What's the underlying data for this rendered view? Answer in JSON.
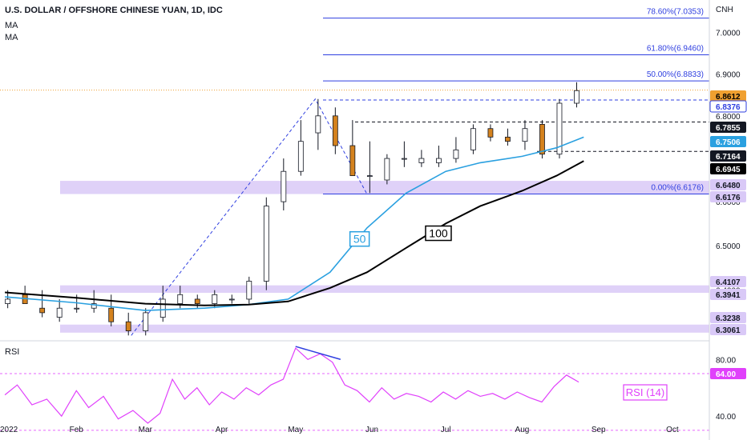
{
  "header": {
    "title": "U.S. DOLLAR / OFFSHORE CHINESE YUAN, 1D, IDC",
    "indicators": [
      "MA",
      "MA"
    ]
  },
  "currency_label": "CNH",
  "rsi_label": "RSI",
  "chart_data": [
    {
      "type": "candlestick",
      "title": "U.S. DOLLAR / OFFSHORE CHINESE YUAN, 1D, IDC",
      "ylabel": "CNH",
      "ylim": [
        6.29,
        7.06
      ],
      "y_scale": "log",
      "x_tick_labels": [
        "2022",
        "Feb",
        "Mar",
        "Apr",
        "May",
        "Jun",
        "Jul",
        "Aug",
        "Sep",
        "Oct"
      ],
      "y_tick_labels": [
        "7.0000",
        "6.9000",
        "6.8000",
        "6.7000",
        "6.6000",
        "6.5000",
        "6.4000"
      ],
      "grid": false,
      "colors": {
        "up": "#ffffff",
        "down": "#d4821e",
        "wick": "#131722",
        "ma50": "#2aa0e0",
        "ma100": "#000000",
        "rsi": "#e040fb",
        "fib": "#2f3fe0",
        "zone": "#d9c9f7"
      },
      "candles": {
        "x": [
          "2022-01-03",
          "2022-01-10",
          "2022-01-17",
          "2022-01-24",
          "2022-01-31",
          "2022-02-07",
          "2022-02-14",
          "2022-02-21",
          "2022-02-28",
          "2022-03-07",
          "2022-03-14",
          "2022-03-21",
          "2022-03-28",
          "2022-04-04",
          "2022-04-11",
          "2022-04-18",
          "2022-04-25",
          "2022-05-02",
          "2022-05-09",
          "2022-05-16",
          "2022-05-23",
          "2022-05-30",
          "2022-06-06",
          "2022-06-13",
          "2022-06-20",
          "2022-06-27",
          "2022-07-04",
          "2022-07-11",
          "2022-07-18",
          "2022-07-25",
          "2022-08-01",
          "2022-08-08",
          "2022-08-15",
          "2022-08-22"
        ],
        "open": [
          6.37,
          6.39,
          6.36,
          6.34,
          6.36,
          6.36,
          6.36,
          6.33,
          6.31,
          6.34,
          6.37,
          6.38,
          6.37,
          6.38,
          6.38,
          6.42,
          6.6,
          6.67,
          6.76,
          6.8,
          6.73,
          6.66,
          6.65,
          6.7,
          6.69,
          6.69,
          6.7,
          6.72,
          6.77,
          6.75,
          6.74,
          6.78,
          6.71,
          6.83
        ],
        "high": [
          6.4,
          6.41,
          6.4,
          6.38,
          6.39,
          6.4,
          6.39,
          6.35,
          6.36,
          6.41,
          6.41,
          6.39,
          6.4,
          6.39,
          6.43,
          6.61,
          6.7,
          6.79,
          6.84,
          6.82,
          6.79,
          6.74,
          6.71,
          6.74,
          6.72,
          6.73,
          6.75,
          6.78,
          6.78,
          6.77,
          6.79,
          6.79,
          6.84,
          6.88
        ],
        "low": [
          6.36,
          6.37,
          6.34,
          6.33,
          6.35,
          6.35,
          6.32,
          6.3,
          6.3,
          6.33,
          6.36,
          6.36,
          6.36,
          6.37,
          6.37,
          6.4,
          6.58,
          6.66,
          6.72,
          6.71,
          6.66,
          6.62,
          6.64,
          6.68,
          6.68,
          6.68,
          6.69,
          6.71,
          6.74,
          6.73,
          6.72,
          6.7,
          6.7,
          6.82
        ],
        "close": [
          6.38,
          6.37,
          6.35,
          6.36,
          6.36,
          6.37,
          6.33,
          6.31,
          6.35,
          6.38,
          6.39,
          6.37,
          6.39,
          6.38,
          6.42,
          6.59,
          6.67,
          6.74,
          6.8,
          6.73,
          6.66,
          6.66,
          6.7,
          6.7,
          6.7,
          6.7,
          6.72,
          6.77,
          6.75,
          6.74,
          6.77,
          6.71,
          6.83,
          6.86
        ]
      },
      "series": [
        {
          "name": "50",
          "type": "line",
          "x": [
            "2022-01-03",
            "2022-02-01",
            "2022-03-01",
            "2022-03-25",
            "2022-04-12",
            "2022-04-28",
            "2022-05-15",
            "2022-05-30",
            "2022-06-15",
            "2022-07-01",
            "2022-07-15",
            "2022-08-01",
            "2022-08-15",
            "2022-08-26"
          ],
          "values": [
            6.385,
            6.372,
            6.355,
            6.36,
            6.368,
            6.38,
            6.44,
            6.54,
            6.62,
            6.67,
            6.69,
            6.705,
            6.725,
            6.75
          ]
        },
        {
          "name": "100",
          "type": "line",
          "x": [
            "2022-01-03",
            "2022-02-01",
            "2022-03-01",
            "2022-03-25",
            "2022-04-12",
            "2022-04-28",
            "2022-05-15",
            "2022-05-30",
            "2022-06-15",
            "2022-07-01",
            "2022-07-15",
            "2022-08-01",
            "2022-08-15",
            "2022-08-26"
          ],
          "values": [
            6.395,
            6.383,
            6.37,
            6.366,
            6.368,
            6.375,
            6.405,
            6.44,
            6.495,
            6.55,
            6.59,
            6.625,
            6.66,
            6.694
          ]
        }
      ],
      "fib_levels": [
        {
          "label": "78.60%(7.0353)",
          "value": 7.0353
        },
        {
          "label": "61.80%(6.9460)",
          "value": 6.946
        },
        {
          "label": "50.00%(6.8833)",
          "value": 6.8833
        },
        {
          "label": "0.00%(6.6176)",
          "value": 6.6176
        }
      ],
      "zones": [
        {
          "from": 6.6176,
          "to": 6.648
        },
        {
          "from": 6.3941,
          "to": 6.4107
        },
        {
          "from": 6.3061,
          "to": 6.3238
        }
      ],
      "price_tags": [
        {
          "value": 6.8612,
          "label": "6.8612",
          "style": "current"
        },
        {
          "value": 6.8376,
          "label": "6.8376",
          "style": "blue"
        },
        {
          "value": 6.7855,
          "label": "6.7855",
          "style": "black"
        },
        {
          "value": 6.7506,
          "label": "6.7506",
          "style": "ma50"
        },
        {
          "value": 6.7164,
          "label": "6.7164",
          "style": "black"
        },
        {
          "value": 6.6945,
          "label": "6.6945",
          "style": "ma100"
        },
        {
          "value": 6.648,
          "label": "6.6480",
          "style": "zone"
        },
        {
          "value": 6.6176,
          "label": "6.6176",
          "style": "zone"
        },
        {
          "value": 6.4107,
          "label": "6.4107",
          "style": "zone"
        },
        {
          "value": 6.3941,
          "label": "6.3941",
          "style": "zone"
        },
        {
          "value": 6.3238,
          "label": "6.3238",
          "style": "zone"
        },
        {
          "value": 6.3061,
          "label": "6.3061",
          "style": "zone"
        }
      ],
      "annotations": [
        "50",
        "100"
      ]
    },
    {
      "type": "line",
      "title": "RSI",
      "legend": "RSI (14)",
      "ylim": [
        26,
        92
      ],
      "y_tick_labels": [
        "80.00",
        "40.00"
      ],
      "reference_lines": [
        70,
        30
      ],
      "series": [
        {
          "name": "RSI (14)",
          "x": [
            "2022-01-03",
            "2022-01-08",
            "2022-01-14",
            "2022-01-20",
            "2022-01-26",
            "2022-02-01",
            "2022-02-06",
            "2022-02-12",
            "2022-02-18",
            "2022-02-24",
            "2022-03-02",
            "2022-03-07",
            "2022-03-12",
            "2022-03-17",
            "2022-03-22",
            "2022-03-27",
            "2022-04-01",
            "2022-04-06",
            "2022-04-11",
            "2022-04-16",
            "2022-04-21",
            "2022-04-26",
            "2022-05-01",
            "2022-05-06",
            "2022-05-11",
            "2022-05-16",
            "2022-05-21",
            "2022-05-26",
            "2022-05-31",
            "2022-06-05",
            "2022-06-10",
            "2022-06-15",
            "2022-06-20",
            "2022-06-25",
            "2022-06-30",
            "2022-07-05",
            "2022-07-10",
            "2022-07-15",
            "2022-07-20",
            "2022-07-25",
            "2022-07-30",
            "2022-08-04",
            "2022-08-09",
            "2022-08-14",
            "2022-08-19",
            "2022-08-24"
          ],
          "values": [
            55,
            62,
            48,
            52,
            40,
            58,
            46,
            54,
            38,
            44,
            35,
            42,
            66,
            52,
            60,
            48,
            57,
            52,
            60,
            55,
            62,
            66,
            88,
            80,
            84,
            78,
            62,
            58,
            50,
            60,
            52,
            56,
            54,
            50,
            57,
            52,
            58,
            54,
            56,
            52,
            57,
            53,
            50,
            61,
            69,
            64
          ]
        }
      ],
      "annotations": [
        "divergence"
      ]
    }
  ]
}
